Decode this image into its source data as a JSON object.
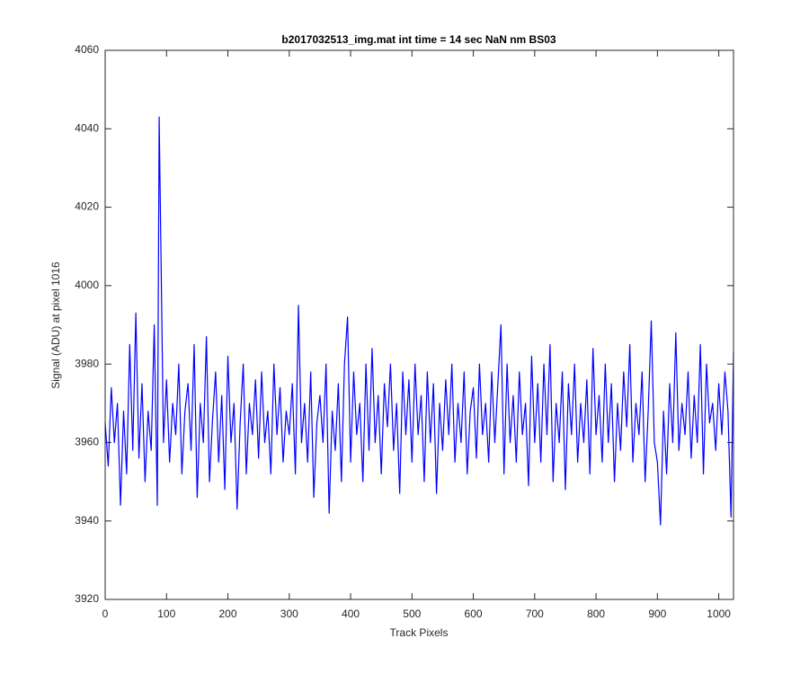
{
  "chart_data": {
    "type": "line",
    "title": "b2017032513_img.mat int time = 14 sec  NaN nm BS03",
    "x_label": "Track Pixels",
    "y_label": "Signal (ADU) at pixel 1016",
    "xlim": [
      0,
      1024
    ],
    "xticks": [
      0,
      100,
      200,
      300,
      400,
      500,
      600,
      700,
      800,
      900,
      1000
    ],
    "ylim": [
      3920,
      4060
    ],
    "yticks": [
      3920,
      3940,
      3960,
      3980,
      4000,
      4020,
      4040,
      4060
    ],
    "grid": false,
    "series": [
      {
        "color": "#0000ff",
        "x": [
          0,
          5,
          10,
          15,
          20,
          25,
          30,
          35,
          40,
          45,
          50,
          55,
          60,
          65,
          70,
          75,
          80,
          85,
          88,
          95,
          100,
          105,
          110,
          115,
          120,
          125,
          130,
          135,
          140,
          145,
          150,
          155,
          160,
          165,
          170,
          175,
          180,
          185,
          190,
          195,
          200,
          205,
          210,
          215,
          220,
          225,
          230,
          235,
          240,
          245,
          250,
          255,
          260,
          265,
          270,
          275,
          280,
          285,
          290,
          295,
          300,
          305,
          310,
          315,
          320,
          325,
          330,
          335,
          340,
          345,
          350,
          355,
          360,
          365,
          370,
          375,
          380,
          385,
          390,
          395,
          400,
          405,
          410,
          415,
          420,
          425,
          430,
          435,
          440,
          445,
          450,
          455,
          460,
          465,
          470,
          475,
          480,
          485,
          490,
          495,
          500,
          505,
          510,
          515,
          520,
          525,
          530,
          535,
          540,
          545,
          550,
          555,
          560,
          565,
          570,
          575,
          580,
          585,
          590,
          595,
          600,
          605,
          610,
          615,
          620,
          625,
          630,
          635,
          640,
          645,
          650,
          655,
          660,
          665,
          670,
          675,
          680,
          685,
          690,
          695,
          700,
          705,
          710,
          715,
          720,
          725,
          730,
          735,
          740,
          745,
          750,
          755,
          760,
          765,
          770,
          775,
          780,
          785,
          790,
          795,
          800,
          805,
          810,
          815,
          820,
          825,
          830,
          835,
          840,
          845,
          850,
          855,
          860,
          865,
          870,
          875,
          880,
          885,
          890,
          895,
          900,
          905,
          910,
          915,
          920,
          925,
          930,
          935,
          940,
          945,
          950,
          955,
          960,
          965,
          970,
          975,
          980,
          985,
          990,
          995,
          1000,
          1005,
          1010,
          1015,
          1020,
          1024
        ],
        "values": [
          3965,
          3954,
          3974,
          3960,
          3970,
          3944,
          3968,
          3952,
          3985,
          3958,
          3993,
          3956,
          3975,
          3950,
          3968,
          3958,
          3990,
          3944,
          4043,
          3960,
          3976,
          3955,
          3970,
          3962,
          3980,
          3952,
          3968,
          3975,
          3958,
          3985,
          3946,
          3970,
          3960,
          3987,
          3950,
          3966,
          3978,
          3955,
          3972,
          3948,
          3982,
          3960,
          3970,
          3943,
          3965,
          3980,
          3952,
          3970,
          3962,
          3976,
          3956,
          3978,
          3960,
          3968,
          3952,
          3980,
          3962,
          3974,
          3955,
          3968,
          3962,
          3975,
          3952,
          3995,
          3960,
          3970,
          3955,
          3978,
          3946,
          3965,
          3972,
          3960,
          3980,
          3942,
          3968,
          3958,
          3975,
          3950,
          3980,
          3992,
          3955,
          3978,
          3962,
          3970,
          3950,
          3980,
          3958,
          3984,
          3960,
          3972,
          3952,
          3975,
          3964,
          3980,
          3958,
          3970,
          3947,
          3978,
          3962,
          3976,
          3955,
          3980,
          3962,
          3972,
          3950,
          3978,
          3960,
          3975,
          3947,
          3970,
          3958,
          3976,
          3962,
          3980,
          3955,
          3970,
          3960,
          3978,
          3952,
          3968,
          3974,
          3956,
          3980,
          3962,
          3970,
          3955,
          3978,
          3960,
          3975,
          3990,
          3952,
          3980,
          3960,
          3972,
          3955,
          3978,
          3962,
          3970,
          3949,
          3982,
          3960,
          3975,
          3955,
          3980,
          3962,
          3985,
          3950,
          3970,
          3960,
          3978,
          3948,
          3975,
          3962,
          3980,
          3955,
          3970,
          3960,
          3976,
          3952,
          3984,
          3962,
          3972,
          3955,
          3980,
          3960,
          3975,
          3950,
          3970,
          3958,
          3978,
          3964,
          3985,
          3955,
          3970,
          3962,
          3978,
          3950,
          3968,
          3991,
          3960,
          3955,
          3939,
          3968,
          3952,
          3975,
          3960,
          3988,
          3958,
          3970,
          3962,
          3978,
          3956,
          3972,
          3960,
          3985,
          3952,
          3980,
          3965,
          3970,
          3958,
          3975,
          3962,
          3978,
          3968,
          3941,
          3983
        ]
      }
    ]
  }
}
